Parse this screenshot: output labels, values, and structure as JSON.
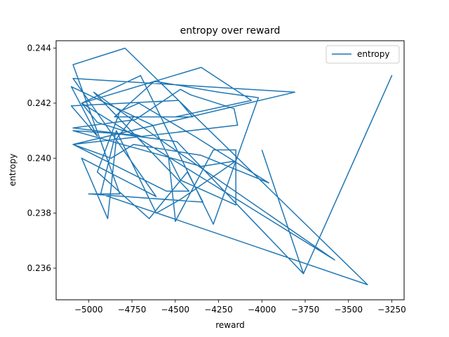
{
  "chart_data": {
    "type": "line",
    "title": "entropy over reward",
    "xlabel": "reward",
    "ylabel": "entropy",
    "xlim": [
      -5187.5,
      -3179
    ],
    "ylim": [
      0.23485,
      0.24427
    ],
    "xticks": [
      -5000,
      -4750,
      -4500,
      -4250,
      -4000,
      -3750,
      -3500,
      -3250
    ],
    "xtick_labels": [
      "−5000",
      "−4750",
      "−4500",
      "−4250",
      "−4000",
      "−3750",
      "−3500",
      "−3250"
    ],
    "yticks": [
      0.236,
      0.238,
      0.24,
      0.242,
      0.244
    ],
    "ytick_labels": [
      "0.236",
      "0.238",
      "0.240",
      "0.242",
      "0.244"
    ],
    "grid": false,
    "legend_position": "upper-right",
    "series": [
      {
        "name": "entropy",
        "color": "#1f77b4",
        "x": [
          -4540,
          -4500,
          -4500,
          -4280,
          -4150,
          -4150,
          -4470,
          -4630,
          -5100,
          -4950,
          -5100,
          -4480,
          -4400,
          -4850,
          -4620,
          -4250,
          -4020,
          -4280,
          -4700,
          -5040,
          -4950,
          -4700,
          -5090,
          -4730,
          -4470,
          -4410,
          -4160,
          -4140,
          -5090,
          -4550,
          -4420,
          -4970,
          -4570,
          -3580,
          -5040,
          -4350,
          -4060,
          -4500,
          -4740,
          -4840,
          -4890,
          -5040,
          -4610,
          -5090,
          -3810,
          -5090,
          -4870,
          -4740,
          -4350,
          -3960,
          -4390,
          -4710,
          -4820,
          -4950,
          -4650,
          -4430,
          -4340,
          -5000,
          -4820,
          -5090,
          -4790,
          -3390,
          -4930,
          -4840,
          -4610,
          -4470,
          -4150,
          -4350,
          -5090,
          -4850,
          -4490,
          -3760,
          -3250,
          -3760,
          -4000
        ],
        "y": [
          0.2401,
          0.2378,
          0.2377,
          0.2403,
          0.2403,
          0.2383,
          0.2392,
          0.2412,
          0.2426,
          0.2408,
          0.2419,
          0.2421,
          0.2415,
          0.2415,
          0.2428,
          0.2424,
          0.2422,
          0.2376,
          0.243,
          0.242,
          0.2413,
          0.2408,
          0.2411,
          0.2414,
          0.2425,
          0.2423,
          0.2418,
          0.2412,
          0.2405,
          0.2388,
          0.2388,
          0.2424,
          0.2406,
          0.2363,
          0.242,
          0.2433,
          0.2421,
          0.2415,
          0.2415,
          0.2407,
          0.2378,
          0.24,
          0.2386,
          0.2429,
          0.2424,
          0.2405,
          0.24,
          0.2405,
          0.2401,
          0.2391,
          0.2408,
          0.242,
          0.2417,
          0.2395,
          0.2378,
          0.2395,
          0.2384,
          0.2387,
          0.2387,
          0.2434,
          0.244,
          0.2354,
          0.2387,
          0.241,
          0.238,
          0.2385,
          0.2399,
          0.2397,
          0.241,
          0.2409,
          0.2406,
          0.2358,
          0.243,
          0.2358,
          0.2403
        ]
      }
    ]
  }
}
